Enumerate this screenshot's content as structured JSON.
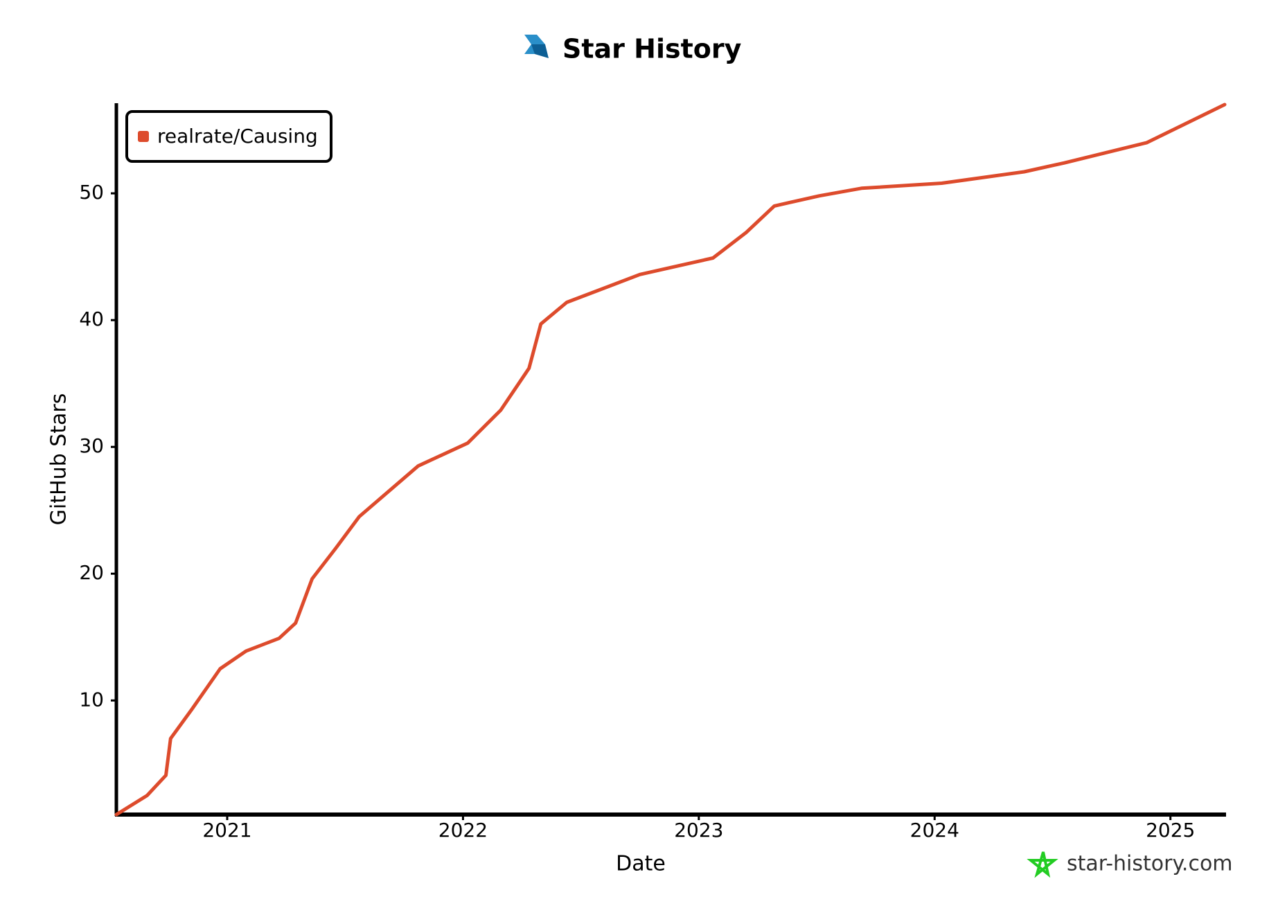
{
  "chart_data": {
    "type": "line",
    "title": "Star History",
    "x_label": "Date",
    "y_label": "GitHub Stars",
    "watermark": "star-history.com",
    "x": [
      2020.53,
      2020.66,
      2020.74,
      2020.76,
      2020.85,
      2020.97,
      2021.08,
      2021.22,
      2021.29,
      2021.36,
      2021.46,
      2021.56,
      2021.81,
      2022.02,
      2022.16,
      2022.28,
      2022.33,
      2022.44,
      2022.75,
      2023.06,
      2023.2,
      2023.32,
      2023.51,
      2023.69,
      2024.03,
      2024.38,
      2024.55,
      2024.9,
      2025.23
    ],
    "series": [
      {
        "name": "realrate/Causing",
        "color": "#dd4b2c",
        "values": [
          1,
          2.5,
          4.1,
          7,
          9.3,
          12.5,
          13.9,
          14.9,
          16.1,
          19.6,
          22,
          24.5,
          28.5,
          30.3,
          32.9,
          36.2,
          39.7,
          41.4,
          43.6,
          44.9,
          46.9,
          49,
          49.8,
          50.4,
          50.8,
          51.7,
          52.4,
          54,
          57
        ]
      }
    ],
    "xlim": [
      2020.53,
      2025.23
    ],
    "xticks": [
      2021,
      2022,
      2023,
      2024,
      2025
    ],
    "ylim": [
      1,
      57
    ],
    "yticks": [
      10,
      20,
      30,
      40,
      50
    ],
    "legend": "top-left",
    "grid": false
  }
}
